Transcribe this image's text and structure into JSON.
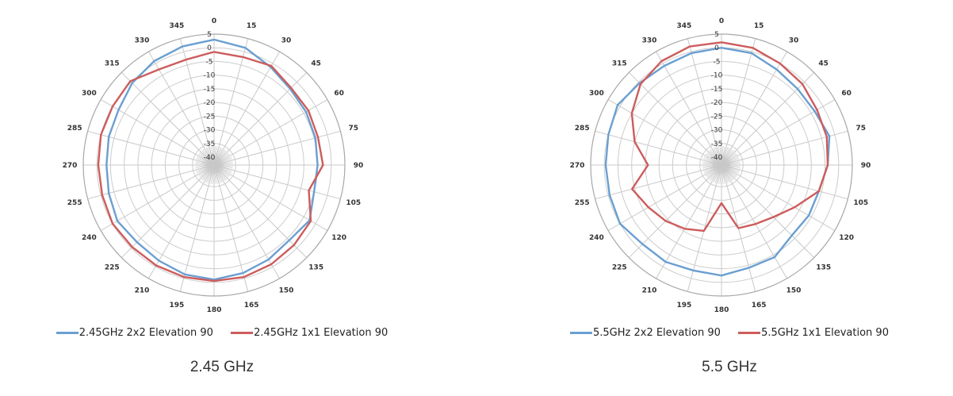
{
  "chart_data": [
    {
      "type": "polar-line",
      "caption": "2.45 GHz",
      "angle_unit": "degrees",
      "angle_labels": [
        "0",
        "15",
        "30",
        "45",
        "60",
        "75",
        "90",
        "105",
        "120",
        "135",
        "150",
        "165",
        "180",
        "195",
        "210",
        "225",
        "240",
        "255",
        "270",
        "285",
        "300",
        "315",
        "330",
        "345"
      ],
      "radial_range": [
        -40,
        5
      ],
      "radial_labels": [
        "5",
        "0",
        "-5",
        "-10",
        "-15",
        "-20",
        "-25",
        "-30",
        "-35",
        "-40"
      ],
      "grid": true,
      "legend_position": "bottom",
      "angles": [
        0,
        15,
        30,
        45,
        60,
        75,
        90,
        105,
        120,
        135,
        150,
        165,
        180,
        195,
        210,
        225,
        240,
        255,
        270,
        285,
        300,
        315,
        330,
        345,
        360
      ],
      "series": [
        {
          "name": "2.45GHz 2x2 Elevation 90",
          "color": "#6a9fd1",
          "values": [
            3,
            1.5,
            -1.5,
            -3.5,
            -4,
            -4.5,
            -5,
            -5,
            -2.5,
            -4,
            -3,
            -2,
            -1,
            -1.5,
            -2.5,
            -3,
            -2,
            -3,
            -3.5,
            -3,
            -2.5,
            -0.5,
            1,
            2,
            3
          ]
        },
        {
          "name": "2.45GHz 1x1 Elevation 90",
          "color": "#cd5c5c",
          "values": [
            -1.5,
            -2,
            -1,
            -3,
            -3,
            -3.5,
            -3,
            -7,
            -2,
            -1.5,
            -1,
            -0.5,
            -0.5,
            -0.5,
            -0.5,
            -0.5,
            0,
            -0.5,
            -0.5,
            0,
            0,
            0.5,
            -2.5,
            -3,
            -1.5
          ]
        }
      ]
    },
    {
      "type": "polar-line",
      "caption": "5.5 GHz",
      "angle_unit": "degrees",
      "angle_labels": [
        "0",
        "15",
        "30",
        "45",
        "60",
        "75",
        "90",
        "105",
        "120",
        "135",
        "150",
        "165",
        "180",
        "195",
        "210",
        "225",
        "240",
        "255",
        "270",
        "285",
        "300",
        "315",
        "330",
        "345"
      ],
      "radial_range": [
        -40,
        5
      ],
      "radial_labels": [
        "5",
        "0",
        "-5",
        "-10",
        "-15",
        "-20",
        "-25",
        "-30",
        "-35",
        "-40"
      ],
      "grid": true,
      "legend_position": "bottom",
      "angles": [
        0,
        15,
        30,
        45,
        60,
        75,
        90,
        105,
        120,
        135,
        150,
        165,
        180,
        195,
        210,
        225,
        240,
        255,
        270,
        285,
        300,
        315,
        330,
        345,
        360
      ],
      "series": [
        {
          "name": "5.5GHz 2x2 Elevation 90",
          "color": "#6a9fd1",
          "values": [
            0,
            -0.5,
            -2.5,
            -3.5,
            -3.5,
            -2,
            -4,
            -6,
            -6,
            -6.5,
            -4,
            -4,
            -2.5,
            -3,
            -2,
            -2,
            0,
            -0.5,
            -0.5,
            0,
            1,
            -0.5,
            -1,
            -0.5,
            0
          ]
        },
        {
          "name": "5.5GHz 1x1 Elevation 90",
          "color": "#cd5c5c",
          "values": [
            2,
            1.5,
            0,
            -1,
            -2.5,
            -3,
            -4,
            -6,
            -12,
            -16,
            -18,
            -19,
            -29,
            -18,
            -16,
            -14,
            -12,
            -9,
            -16,
            -10,
            -5,
            -1,
            1,
            2,
            2
          ]
        }
      ]
    }
  ]
}
